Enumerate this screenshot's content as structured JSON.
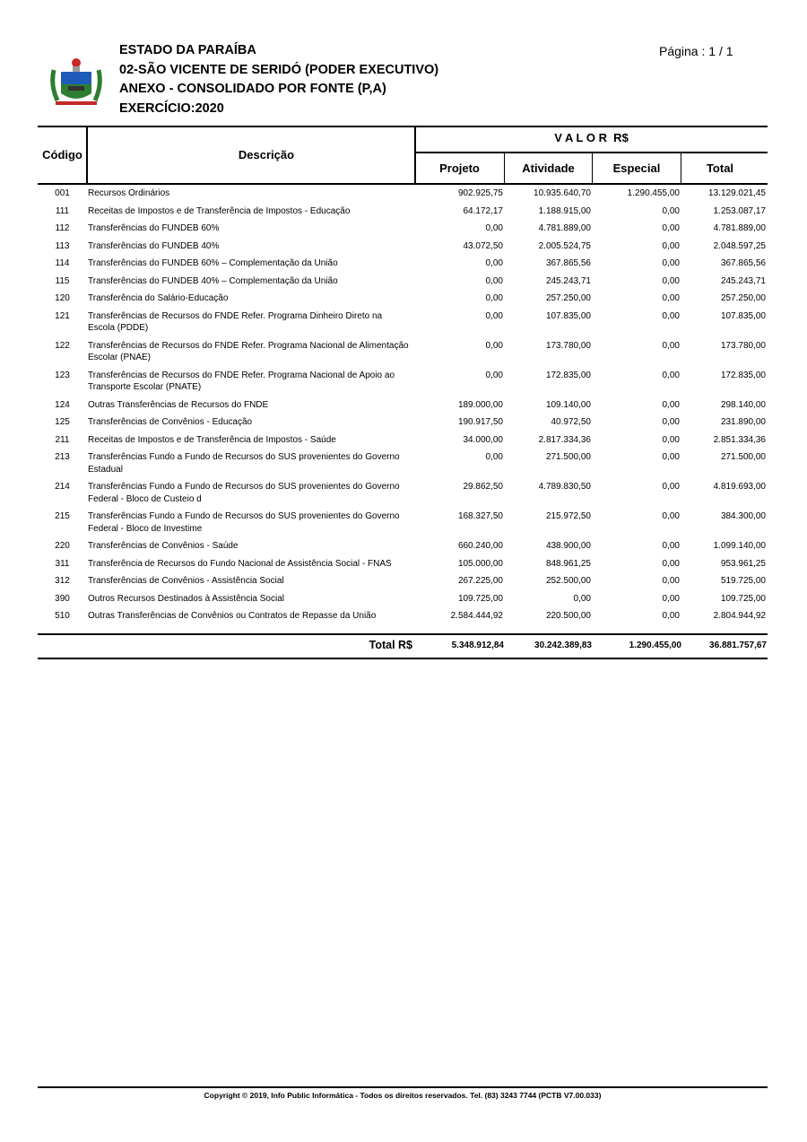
{
  "header": {
    "state": "ESTADO DA PARAÍBA",
    "entity": "02-SÃO VICENTE DE SERIDÓ (PODER EXECUTIVO)",
    "report": "ANEXO - CONSOLIDADO POR FONTE (P,A)",
    "year": "EXERCÍCIO:2020",
    "page": "Página : 1 / 1"
  },
  "table": {
    "headers": {
      "code": "Código",
      "desc": "Descrição",
      "valor": "V A L O R  R$",
      "projeto": "Projeto",
      "atividade": "Atividade",
      "especial": "Especial",
      "total": "Total"
    },
    "rows": [
      {
        "code": "001",
        "desc": "Recursos Ordinários",
        "projeto": "902.925,75",
        "atividade": "10.935.640,70",
        "especial": "1.290.455,00",
        "total": "13.129.021,45"
      },
      {
        "code": "111",
        "desc": "Receitas de Impostos e de Transferência de Impostos - Educação",
        "projeto": "64.172,17",
        "atividade": "1.188.915,00",
        "especial": "0,00",
        "total": "1.253.087,17"
      },
      {
        "code": "112",
        "desc": "Transferências do FUNDEB 60%",
        "projeto": "0,00",
        "atividade": "4.781.889,00",
        "especial": "0,00",
        "total": "4.781.889,00"
      },
      {
        "code": "113",
        "desc": "Transferências do FUNDEB 40%",
        "projeto": "43.072,50",
        "atividade": "2.005.524,75",
        "especial": "0,00",
        "total": "2.048.597,25"
      },
      {
        "code": "114",
        "desc": "Transferências do FUNDEB 60% – Complementação da União",
        "projeto": "0,00",
        "atividade": "367.865,56",
        "especial": "0,00",
        "total": "367.865,56"
      },
      {
        "code": "115",
        "desc": "Transferências do FUNDEB 40% – Complementação da União",
        "projeto": "0,00",
        "atividade": "245.243,71",
        "especial": "0,00",
        "total": "245.243,71"
      },
      {
        "code": "120",
        "desc": "Transferência do Salário-Educação",
        "projeto": "0,00",
        "atividade": "257.250,00",
        "especial": "0,00",
        "total": "257.250,00"
      },
      {
        "code": "121",
        "desc": "Transferências de Recursos do FNDE Refer. Programa Dinheiro Direto na Escola (PDDE)",
        "projeto": "0,00",
        "atividade": "107.835,00",
        "especial": "0,00",
        "total": "107.835,00"
      },
      {
        "code": "122",
        "desc": "Transferências de Recursos do FNDE Refer. Programa Nacional de Alimentação Escolar (PNAE)",
        "projeto": "0,00",
        "atividade": "173.780,00",
        "especial": "0,00",
        "total": "173.780,00"
      },
      {
        "code": "123",
        "desc": "Transferências de Recursos do FNDE Refer. Programa Nacional de Apoio ao Transporte Escolar (PNATE)",
        "projeto": "0,00",
        "atividade": "172.835,00",
        "especial": "0,00",
        "total": "172.835,00"
      },
      {
        "code": "124",
        "desc": "Outras Transferências de Recursos do FNDE",
        "projeto": "189.000,00",
        "atividade": "109.140,00",
        "especial": "0,00",
        "total": "298.140,00"
      },
      {
        "code": "125",
        "desc": "Transferências de Convênios - Educação",
        "projeto": "190.917,50",
        "atividade": "40.972,50",
        "especial": "0,00",
        "total": "231.890,00"
      },
      {
        "code": "211",
        "desc": "Receitas de Impostos e de Transferência de Impostos - Saúde",
        "projeto": "34.000,00",
        "atividade": "2.817.334,36",
        "especial": "0,00",
        "total": "2.851.334,36"
      },
      {
        "code": "213",
        "desc": "Transferências Fundo a Fundo de Recursos do SUS provenientes do Governo Estadual",
        "projeto": "0,00",
        "atividade": "271.500,00",
        "especial": "0,00",
        "total": "271.500,00"
      },
      {
        "code": "214",
        "desc": "Transferências Fundo a Fundo de Recursos do SUS provenientes do Governo Federal - Bloco de Custeio d",
        "projeto": "29.862,50",
        "atividade": "4.789.830,50",
        "especial": "0,00",
        "total": "4.819.693,00"
      },
      {
        "code": "215",
        "desc": "Transferências Fundo a Fundo de Recursos do SUS provenientes do Governo Federal - Bloco de Investime",
        "projeto": "168.327,50",
        "atividade": "215.972,50",
        "especial": "0,00",
        "total": "384.300,00"
      },
      {
        "code": "220",
        "desc": "Transferências de Convênios - Saúde",
        "projeto": "660.240,00",
        "atividade": "438.900,00",
        "especial": "0,00",
        "total": "1.099.140,00"
      },
      {
        "code": "311",
        "desc": "Transferência de Recursos do Fundo Nacional de Assistência Social - FNAS",
        "projeto": "105.000,00",
        "atividade": "848.961,25",
        "especial": "0,00",
        "total": "953.961,25"
      },
      {
        "code": "312",
        "desc": "Transferências de Convênios - Assistência Social",
        "projeto": "267.225,00",
        "atividade": "252.500,00",
        "especial": "0,00",
        "total": "519.725,00"
      },
      {
        "code": "390",
        "desc": "Outros Recursos Destinados à Assistência Social",
        "projeto": "109.725,00",
        "atividade": "0,00",
        "especial": "0,00",
        "total": "109.725,00"
      },
      {
        "code": "510",
        "desc": "Outras Transferências de Convênios ou Contratos de Repasse da União",
        "projeto": "2.584.444,92",
        "atividade": "220.500,00",
        "especial": "0,00",
        "total": "2.804.944,92"
      }
    ],
    "totals": {
      "label": "Total R$",
      "projeto": "5.348.912,84",
      "atividade": "30.242.389,83",
      "especial": "1.290.455,00",
      "total": "36.881.757,67"
    }
  },
  "footer": "Copyright © 2019, Info Public Informática - Todos os direitos reservados. Tel. (83) 3243 7744 (PCTB V7.00.033)"
}
